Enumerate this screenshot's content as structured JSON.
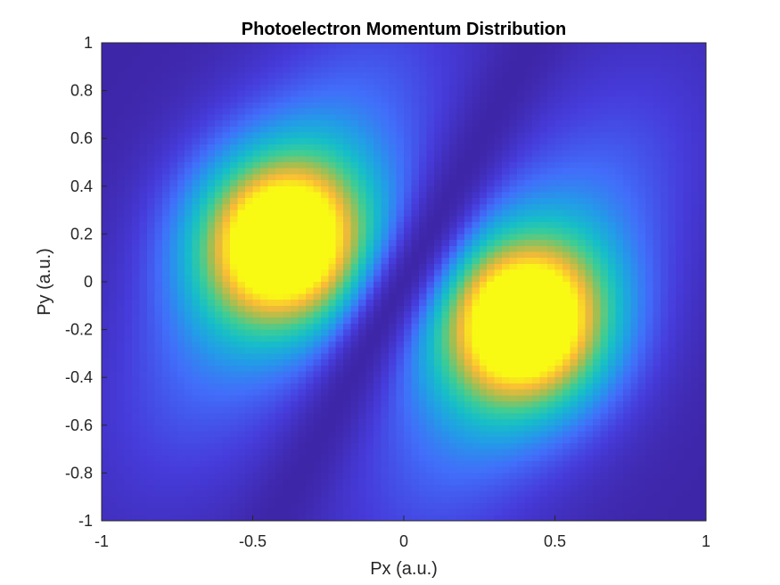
{
  "chart_data": {
    "type": "heatmap",
    "title": "Photoelectron Momentum Distribution",
    "xlabel": "Px (a.u.)",
    "ylabel": "Py (a.u.)",
    "xlim": [
      -1,
      1
    ],
    "ylim": [
      -1,
      1
    ],
    "x_ticks": [
      -1,
      -0.5,
      0,
      0.5,
      1
    ],
    "x_tick_labels": [
      "-1",
      "-0.5",
      "0",
      "0.5",
      "1"
    ],
    "y_ticks": [
      1,
      0.8,
      0.6,
      0.4,
      0.2,
      0,
      -0.2,
      -0.4,
      -0.6,
      -0.8,
      -1
    ],
    "y_tick_labels": [
      "1",
      "0.8",
      "0.6",
      "0.4",
      "0.2",
      "0",
      "-0.2",
      "-0.4",
      "-0.6",
      "-0.8",
      "-1"
    ],
    "grid": false,
    "colormap": "parula",
    "grid_resolution": [
      80,
      80
    ],
    "lobes": [
      {
        "center": [
          -0.4,
          0.17
        ],
        "peak": 1.0
      },
      {
        "center": [
          0.4,
          -0.17
        ],
        "peak": 1.0
      }
    ]
  }
}
